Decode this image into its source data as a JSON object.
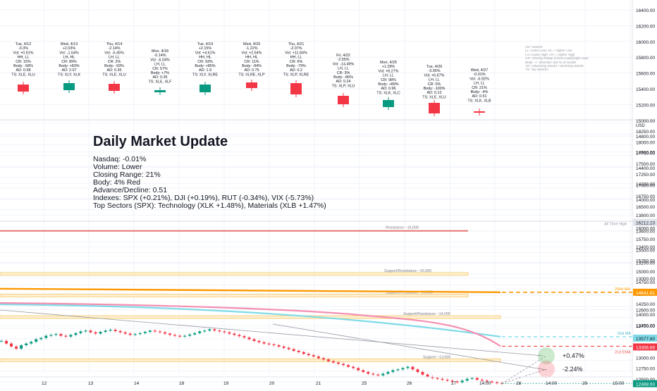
{
  "daily_cards": [
    {
      "date": "Tue, 4/12",
      "lines": [
        "-0.3%",
        "Vol: +0.91%",
        "HH, LL",
        "CR: 15%",
        "Body: -58%",
        "AD: 0.58",
        "TS: XLE, XLU"
      ],
      "candle": "red"
    },
    {
      "date": "Wed, 4/13",
      "lines": [
        "+2.03%",
        "Vol: -1.64%",
        "LH, HL",
        "CR: 89%",
        "Body: +83%",
        "AD: 2.07",
        "TS: XLY, XLK"
      ],
      "candle": "green"
    },
    {
      "date": "Thu, 4/14",
      "lines": [
        "-2.14%",
        "Vol: -5.45%",
        "LH, LL",
        "CR: 2%",
        "Body: -93%",
        "AD: 0.35",
        "TS: XLE, XLU"
      ],
      "candle": "red"
    },
    {
      "date": "Mon, 4/18",
      "lines": [
        "-0.14%",
        "Vol: -6.04%",
        "LH, LL",
        "CR: 57%",
        "Body: +7%",
        "AD: 0.35",
        "TS: XLE, XLF"
      ],
      "candle": "green"
    },
    {
      "date": "Tue, 4/19",
      "lines": [
        "+2.15%",
        "Vol: +4.61%",
        "HH, HL",
        "CR: 93%",
        "Body: +85%",
        "AD: 1.9",
        "TS: XLY, XLRE"
      ],
      "candle": "green"
    },
    {
      "date": "Wed, 4/20",
      "lines": [
        "-1.22%",
        "Vol: +2.54%",
        "HH, HL",
        "CR: 11%",
        "Body: -84%",
        "AD: 0.75",
        "TS: XLRE, XLP"
      ],
      "candle": "red"
    },
    {
      "date": "Thu, 4/21",
      "lines": [
        "-2.07%",
        "Vol: +11.84%",
        "HH, LL",
        "CR: 6%",
        "Body: -79%",
        "AD: 0.2",
        "TS: XLP, XLRE"
      ],
      "candle": "red"
    },
    {
      "date": "Fri, 4/22",
      "lines": [
        "-2.55%",
        "Vol: -14.49%",
        "LH, LL",
        "CR: 3%",
        "Body: -86%",
        "AD: 0.24",
        "TS: XLP, XLU"
      ],
      "candle": "red"
    },
    {
      "date": "Mon, 4/25",
      "lines": [
        "+1.29%",
        "Vol: +8.27%",
        "LH, LL",
        "CR: 98%",
        "Body: +89%",
        "AD: 0.96",
        "TS: XLK, XLC"
      ],
      "candle": "green"
    },
    {
      "date": "Tue, 4/26",
      "lines": [
        "-3.95%",
        "Vol: +6.67%",
        "LH, LL",
        "CR: 0%",
        "Body: -100%",
        "AD: 0.12",
        "TS: XLE, XLU"
      ],
      "candle": "red"
    },
    {
      "date": "Wed, 4/27",
      "lines": [
        "-0.01%",
        "Vol: -6.92%",
        "LH, LL",
        "CR: 21%",
        "Body: -4%",
        "AD: 0.51",
        "TS: XLK, XLB"
      ],
      "candle": "red"
    }
  ],
  "legend_note": [
    "Vol: Volume",
    "LL: Lower Low, HL = Higher Low",
    "LH: Lower High, HH = Higher High",
    "CR: Closing Range (Close-Low)/(High-Low)",
    "Body: +/- Direction and % of candle",
    "AD: Advancing Stocks / Declining Stocks",
    "TS: Top Sectors"
  ],
  "summary": {
    "title": "Daily Market Update",
    "lines": [
      "Nasdaq: -0.01%",
      "Volume: Lower",
      "Closing Range: 21%",
      "Body: 4% Red",
      "Advance/Decline: 0.51",
      "Indexes: SPX (+0.21%), DJI (+0.19%), RUT (-0.34%), VIX (-5.73%)",
      "Top Sectors (SPX): Technology (XLK +1.48%), Materials (XLB +1.47%)"
    ]
  },
  "colors": {
    "up": "#089981",
    "down": "#f23645",
    "grid": "#f0f3fa",
    "resistance": "#e57373",
    "support": "#f6c96a",
    "ma200": "#ff9800",
    "ma50": "#7fdbe8",
    "ema21": "#f48fb1"
  },
  "chart_data": {
    "type": "line",
    "symbol_hint": "Nasdaq",
    "top_axis": {
      "ticks": [
        "16400.00",
        "16200.00",
        "16000.00",
        "15800.00",
        "15600.00",
        "15400.00",
        "15200.00",
        "15000.00",
        "14800.00",
        "14600.00",
        "14400.00",
        "14200.00",
        "14000.00",
        "13800.00",
        "13600.00",
        "13400.00",
        "13200.00",
        "13000.00",
        "12800.00",
        "12600.00",
        "12400.00"
      ],
      "currency": "USD"
    },
    "axis": {
      "ticks": [
        "18250.00",
        "18000.00",
        "17750.00",
        "17500.00",
        "17250.00",
        "17000.00",
        "16750.00",
        "16500.00",
        "16000.00",
        "15750.00",
        "15500.00",
        "15250.00",
        "15000.00",
        "14750.00",
        "14500.00",
        "14250.00",
        "14000.00",
        "13750.00",
        "13500.00",
        "13250.00",
        "13000.00",
        "12750.00",
        "12500.00",
        "12250.00"
      ],
      "ylim": [
        12100,
        18300
      ]
    },
    "x_ticks": [
      "12",
      "13",
      "14",
      "18",
      "19",
      "20",
      "21",
      "25",
      "26",
      "27",
      "14:00",
      "28",
      "14:00",
      "29",
      "15:00"
    ],
    "ath": {
      "value": 16212.23,
      "label": "All Time High",
      "badge": "16212.23"
    },
    "levels": [
      {
        "value": 16000,
        "label": "Resistance ~16,000",
        "kind": "resistance"
      },
      {
        "value": 15000,
        "label": "Support/Resistance ~15,000",
        "kind": "support"
      },
      {
        "value": 14500,
        "label": "Support/Resistance ~14,500",
        "kind": "support"
      },
      {
        "value": 14000,
        "label": "Support/Resistance ~14,000",
        "kind": "support"
      },
      {
        "value": 13000,
        "label": "Support ~13,000",
        "kind": "support"
      }
    ],
    "ma200": {
      "label": "200d MA",
      "badge": "14641.61",
      "value": 14641.61
    },
    "ma50": {
      "label": "50d MA",
      "badge": "13577.80",
      "value": 13577.8
    },
    "ema21": {
      "label": "21d EMA",
      "badge": "13356.69",
      "value": 13356.69
    },
    "last_price": "12488.93",
    "price_series": [
      13480,
      13420,
      13350,
      13300,
      13380,
      13420,
      13460,
      13520,
      13550,
      13600,
      13620,
      13640,
      13600,
      13580,
      13620,
      13660,
      13700,
      13720,
      13680,
      13650,
      13690,
      13720,
      13740,
      13710,
      13680,
      13650,
      13620,
      13640,
      13660,
      13690,
      13720,
      13700,
      13680,
      13650,
      13620,
      13600,
      13580,
      13600,
      13630,
      13660,
      13700,
      13720,
      13750,
      13720,
      13700,
      13680,
      13650,
      13620,
      13590,
      13560,
      13520,
      13480,
      13450,
      13420,
      13400,
      13380,
      13350,
      13320,
      13290,
      13250,
      13220,
      13180,
      13150,
      13120,
      13080,
      13050,
      13010,
      12980,
      12950,
      12920,
      12880,
      12850,
      12800,
      12760,
      12720,
      12700,
      12680,
      12720,
      12760,
      12800,
      12820,
      12850,
      12880,
      12820,
      12760,
      12700,
      12650,
      12620,
      12600,
      12580,
      12560,
      12540,
      12520,
      12560,
      12600,
      12620,
      12580,
      12560,
      12540,
      12520,
      12500,
      12490
    ],
    "projections": [
      {
        "label": "+0.47%"
      },
      {
        "label": "-2.24%"
      }
    ]
  }
}
